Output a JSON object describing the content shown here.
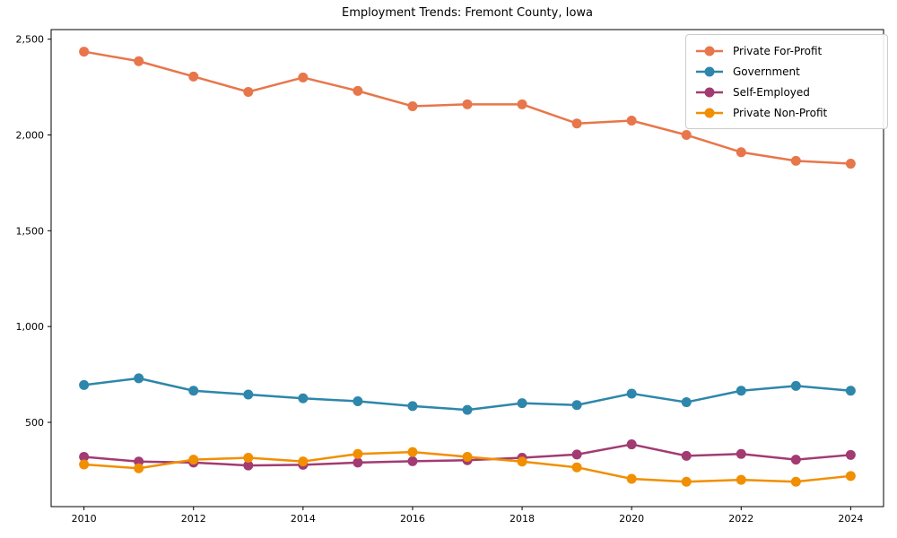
{
  "chart_data": {
    "type": "line",
    "title": "Employment Trends: Fremont County, Iowa",
    "xlabel": "",
    "ylabel": "",
    "x": [
      2010,
      2011,
      2012,
      2013,
      2014,
      2015,
      2016,
      2017,
      2018,
      2019,
      2020,
      2021,
      2022,
      2023,
      2024
    ],
    "series": [
      {
        "name": "Private For-Profit",
        "color": "#E8764B",
        "values": [
          2435,
          2385,
          2305,
          2225,
          2300,
          2230,
          2150,
          2160,
          2160,
          2060,
          2075,
          2000,
          1910,
          1865,
          1850
        ]
      },
      {
        "name": "Government",
        "color": "#2E86AB",
        "values": [
          695,
          730,
          665,
          645,
          625,
          610,
          585,
          565,
          600,
          590,
          650,
          605,
          665,
          690,
          665
        ]
      },
      {
        "name": "Self-Employed",
        "color": "#A23B72",
        "values": [
          320,
          295,
          290,
          275,
          278,
          290,
          297,
          302,
          315,
          332,
          385,
          325,
          335,
          305,
          330
        ]
      },
      {
        "name": "Private Non-Profit",
        "color": "#F18F01",
        "values": [
          280,
          260,
          305,
          315,
          296,
          335,
          345,
          320,
          295,
          265,
          205,
          190,
          200,
          190,
          220
        ]
      }
    ],
    "xlim": [
      2009.4,
      2024.6
    ],
    "ylim": [
      60,
      2550
    ],
    "xticks": {
      "values": [
        2010,
        2012,
        2014,
        2016,
        2018,
        2020,
        2022,
        2024
      ],
      "labels": [
        "2010",
        "2012",
        "2014",
        "2016",
        "2018",
        "2020",
        "2022",
        "2024"
      ]
    },
    "yticks": {
      "values": [
        500,
        1000,
        1500,
        2000,
        2500
      ],
      "labels": [
        "500",
        "1,000",
        "1,500",
        "2,000",
        "2,500"
      ]
    },
    "grid": false,
    "legend_position": "upper right",
    "background_color": "#ffffff",
    "frame_color": "#000000"
  }
}
